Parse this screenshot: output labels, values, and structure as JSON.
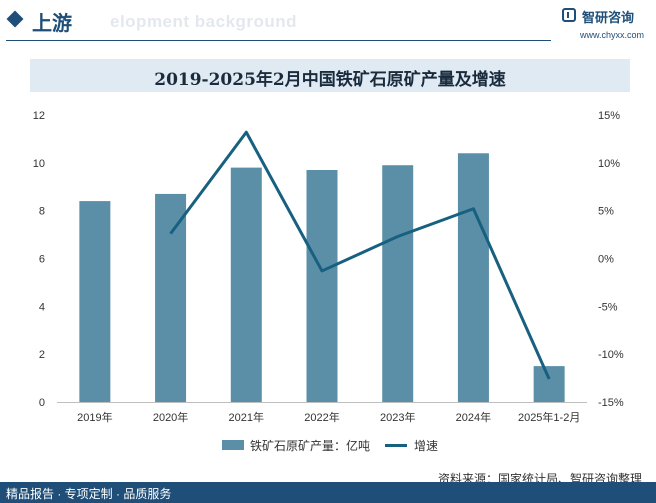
{
  "header": {
    "section_title": "上游",
    "background_text": "elopment background",
    "brand_name": "智研咨询",
    "brand_url": "www.chyxx.com"
  },
  "chart_data": {
    "type": "bar",
    "title": "2019-2025年2月中国铁矿石原矿产量及增速",
    "categories": [
      "2019年",
      "2020年",
      "2021年",
      "2022年",
      "2023年",
      "2024年",
      "2025年1-2月"
    ],
    "series": [
      {
        "name": "铁矿石原矿产量：亿吨",
        "type": "bar",
        "axis": "left",
        "color": "#5b8fa8",
        "values": [
          8.4,
          8.7,
          9.8,
          9.7,
          9.9,
          10.4,
          1.5
        ]
      },
      {
        "name": "增速",
        "type": "line",
        "axis": "right",
        "color": "#17607f",
        "values": [
          null,
          2.6,
          13.2,
          -1.3,
          2.3,
          5.2,
          -12.6
        ]
      }
    ],
    "y_left": {
      "min": 0,
      "max": 12,
      "ticks": [
        "0",
        "2",
        "4",
        "6",
        "8",
        "10",
        "12"
      ]
    },
    "y_right": {
      "min": -15,
      "max": 15,
      "ticks": [
        "-15%",
        "-10%",
        "-5%",
        "0%",
        "5%",
        "10%",
        "15%"
      ]
    },
    "grid": false,
    "legend_position": "bottom"
  },
  "footer": {
    "source": "资料来源：国家统计局、智研咨询整理",
    "services": "精品报告 · 专项定制 · 品质服务"
  }
}
